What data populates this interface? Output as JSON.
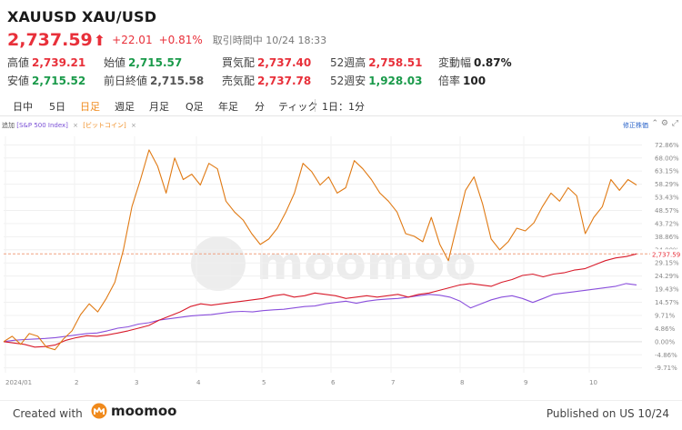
{
  "header": {
    "title": "XAUUSD XAU/USD",
    "price": "2,737.59",
    "arrow": "⬆",
    "change": "+22.01",
    "change_pct": "+0.81%",
    "time_label": "取引時間中 10/24 18:33"
  },
  "stats": {
    "row1": [
      {
        "label": "高値",
        "value": "2,739.21",
        "color": "red"
      },
      {
        "label": "始値",
        "value": "2,715.57",
        "color": "green"
      },
      {
        "label": "買気配",
        "value": "2,737.40",
        "color": "red"
      },
      {
        "label": "52週高",
        "value": "2,758.51",
        "color": "red"
      },
      {
        "label": "変動幅",
        "value": "0.87%",
        "color": "dark"
      }
    ],
    "row2": [
      {
        "label": "安値",
        "value": "2,715.52",
        "color": "green"
      },
      {
        "label": "前日終値",
        "value": "2,715.58",
        "color": "gray"
      },
      {
        "label": "売気配",
        "value": "2,737.78",
        "color": "red"
      },
      {
        "label": "52週安",
        "value": "1,928.03",
        "color": "green"
      },
      {
        "label": "倍率",
        "value": "100",
        "color": "dark"
      }
    ]
  },
  "tabs": [
    "日中",
    "5日",
    "日足",
    "週足",
    "月足",
    "Q足",
    "年足",
    "分",
    "ティック",
    "1日：1分"
  ],
  "active_tab": "日足",
  "legend": {
    "add": "追加",
    "series1": "[S&P 500 Index]",
    "series2": "[ビットコイン]",
    "close": "×",
    "adjusted": "修正株価"
  },
  "colors": {
    "up": "#e8303a",
    "down": "#1a9a4a",
    "accent": "#f08a1c",
    "xauusd_line": "#d81b2b",
    "sp500_line": "#8a4fdc",
    "bitcoin_line": "#e07a14"
  },
  "icons": [
    "chevron-up-icon",
    "gear-icon",
    "fullscreen-icon",
    "moomoo-logo-icon"
  ],
  "chart_data": {
    "type": "line",
    "x_ticks": [
      "2024/01",
      "2",
      "3",
      "4",
      "5",
      "6",
      "7",
      "8",
      "9",
      "10"
    ],
    "y_ticks": [
      "72.86%",
      "68.00%",
      "63.15%",
      "58.29%",
      "53.43%",
      "48.57%",
      "43.72%",
      "38.86%",
      "34.00%",
      "29.15%",
      "24.29%",
      "19.43%",
      "14.57%",
      "9.71%",
      "4.86%",
      "0.00%",
      "-4.86%",
      "-9.71%"
    ],
    "ylim": [
      -11.5,
      76
    ],
    "price_label": "2,737.59",
    "price_level_pct": 32.5,
    "series": [
      {
        "name": "XAU/USD",
        "color": "#d81b2b",
        "values": [
          0,
          -0.5,
          -1,
          -2,
          -1.8,
          -1.2,
          0.5,
          1.5,
          2.2,
          2,
          2.5,
          3.2,
          4,
          5,
          6,
          8,
          9.5,
          11,
          13,
          14,
          13.5,
          14,
          14.5,
          15,
          15.5,
          16,
          17,
          17.5,
          16.5,
          17,
          18,
          17.5,
          17,
          16,
          16.5,
          17,
          16.5,
          17,
          17.5,
          16.5,
          17.5,
          18,
          19,
          20,
          21,
          21.5,
          21,
          20.5,
          22,
          23,
          24.5,
          25,
          24,
          25,
          25.5,
          26.5,
          27,
          28.5,
          30,
          31,
          31.5,
          32.5
        ]
      },
      {
        "name": "S&P 500 Index",
        "color": "#8a4fdc",
        "values": [
          0,
          0.5,
          0.8,
          1,
          1.2,
          1.5,
          2,
          2.5,
          3,
          3.2,
          4,
          5,
          5.5,
          6.5,
          7,
          8,
          8.5,
          9,
          9.5,
          9.8,
          10,
          10.5,
          11,
          11.2,
          11,
          11.5,
          11.8,
          12,
          12.5,
          13,
          13.2,
          14,
          14.5,
          15,
          14.2,
          15,
          15.5,
          15.8,
          16,
          16.5,
          17,
          17.5,
          17.2,
          16.5,
          15,
          12.5,
          14,
          15.5,
          16.5,
          17,
          16,
          14.5,
          16,
          17.5,
          18,
          18.5,
          19,
          19.5,
          20,
          20.5,
          21.5,
          21
        ]
      },
      {
        "name": "ビットコイン",
        "color": "#e07a14",
        "values": [
          0,
          2,
          -1,
          3,
          2,
          -2,
          -3,
          1,
          4,
          10,
          14,
          11,
          16,
          22,
          34,
          50,
          60,
          71,
          65,
          55,
          68,
          60,
          62,
          58,
          66,
          64,
          52,
          48,
          45,
          40,
          36,
          38,
          42,
          48,
          55,
          66,
          63,
          58,
          61,
          55,
          57,
          67,
          64,
          60,
          55,
          52,
          48,
          40,
          39,
          37,
          46,
          36,
          30,
          43,
          56,
          61,
          51,
          38,
          34,
          37,
          42,
          41,
          44,
          50,
          55,
          52,
          57,
          54,
          40,
          46,
          50,
          60,
          56,
          60,
          58
        ]
      }
    ]
  },
  "footer": {
    "created_with": "Created with",
    "brand": "moomoo",
    "published": "Published on US 10/24"
  }
}
